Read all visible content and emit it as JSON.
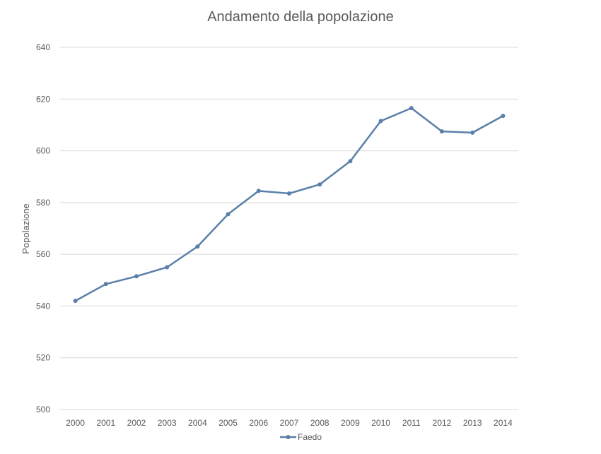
{
  "chart_data": {
    "type": "line",
    "title": "Andamento della popolazione",
    "xlabel": "",
    "ylabel": "Popolazione",
    "categories": [
      "2000",
      "2001",
      "2002",
      "2003",
      "2004",
      "2005",
      "2006",
      "2007",
      "2008",
      "2009",
      "2010",
      "2011",
      "2012",
      "2013",
      "2014"
    ],
    "series": [
      {
        "name": "Faedo",
        "color": "#5a7fa8",
        "values": [
          542,
          548.5,
          551.5,
          555,
          563,
          575.5,
          584.5,
          583.5,
          587,
          596,
          611.5,
          616.5,
          607.5,
          607,
          613.5
        ]
      }
    ],
    "ylim": [
      500,
      640
    ],
    "yticks": [
      500,
      520,
      540,
      560,
      580,
      600,
      620,
      640
    ],
    "grid": "horizontal",
    "legend": "bottom"
  }
}
